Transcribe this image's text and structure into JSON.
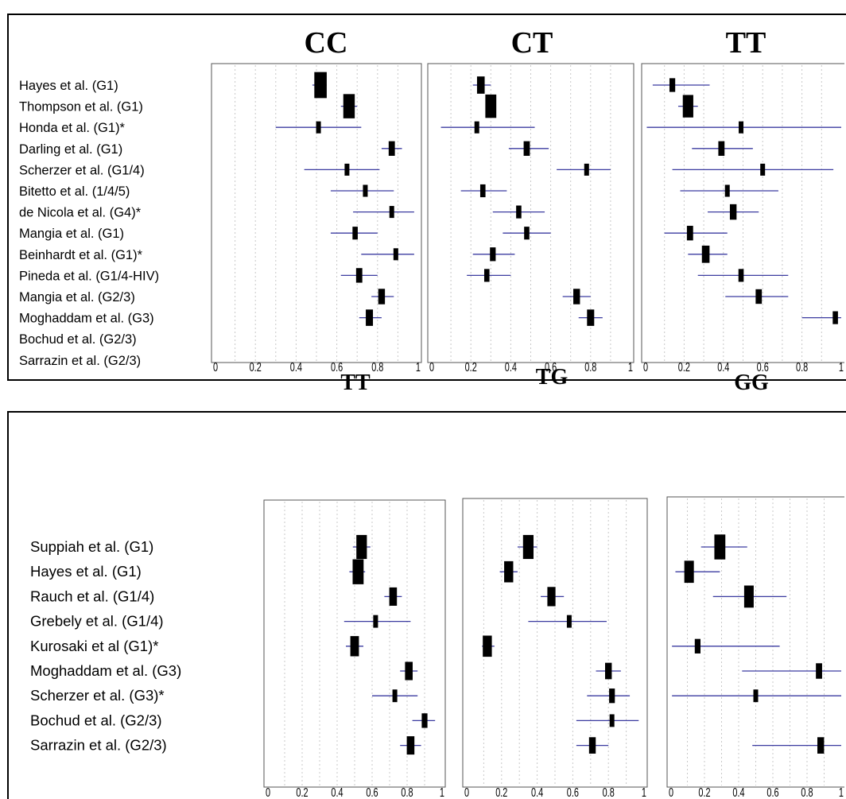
{
  "chart_data": [
    {
      "type": "forest",
      "studies": [
        "Hayes et al. (G1)",
        "Thompson et al. (G1)",
        "Honda et al. (G1)*",
        "Darling et al. (G1)",
        "Scherzer et al. (G1/4)",
        "Bitetto et al. (1/4/5)",
        "de Nicola et al. (G4)*",
        "Mangia et al. (G1)",
        "Beinhardt et al. (G1)*",
        "Pineda et al. (G1/4-HIV)",
        "Mangia et al. (G2/3)",
        "Moghaddam et al. (G3)",
        "Bochud et al.  (G2/3)",
        "Sarrazin et al. (G2/3)"
      ],
      "xlim": [
        0,
        1
      ],
      "xticks": [
        "0",
        "0.2",
        "0.4",
        "0.6",
        "0.8",
        "1"
      ],
      "panels": [
        {
          "title": "CC",
          "series": [
            {
              "est": 0.52,
              "lo": 0.48,
              "hi": 0.55,
              "weight": 2.6
            },
            {
              "est": 0.66,
              "lo": 0.62,
              "hi": 0.7,
              "weight": 2.4
            },
            {
              "est": 0.51,
              "lo": 0.3,
              "hi": 0.72,
              "weight": 1.0
            },
            {
              "est": 0.87,
              "lo": 0.82,
              "hi": 0.92,
              "weight": 1.3
            },
            {
              "est": 0.65,
              "lo": 0.44,
              "hi": 0.81,
              "weight": 1.0
            },
            {
              "est": 0.74,
              "lo": 0.57,
              "hi": 0.88,
              "weight": 1.0
            },
            {
              "est": 0.87,
              "lo": 0.68,
              "hi": 0.98,
              "weight": 1.0
            },
            {
              "est": 0.69,
              "lo": 0.57,
              "hi": 0.8,
              "weight": 1.1
            },
            {
              "est": 0.89,
              "lo": 0.72,
              "hi": 0.98,
              "weight": 1.0
            },
            {
              "est": 0.71,
              "lo": 0.62,
              "hi": 0.8,
              "weight": 1.3
            },
            {
              "est": 0.82,
              "lo": 0.77,
              "hi": 0.88,
              "weight": 1.4
            },
            {
              "est": 0.76,
              "lo": 0.71,
              "hi": 0.82,
              "weight": 1.5
            },
            null,
            null
          ]
        },
        {
          "title": "CT",
          "series": [
            {
              "est": 0.25,
              "lo": 0.21,
              "hi": 0.3,
              "weight": 1.6
            },
            {
              "est": 0.3,
              "lo": 0.28,
              "hi": 0.32,
              "weight": 2.3
            },
            {
              "est": 0.23,
              "lo": 0.05,
              "hi": 0.52,
              "weight": 1.0
            },
            {
              "est": 0.48,
              "lo": 0.39,
              "hi": 0.59,
              "weight": 1.3
            },
            {
              "est": 0.78,
              "lo": 0.63,
              "hi": 0.9,
              "weight": 1.0
            },
            {
              "est": 0.26,
              "lo": 0.15,
              "hi": 0.38,
              "weight": 1.1
            },
            {
              "est": 0.44,
              "lo": 0.31,
              "hi": 0.57,
              "weight": 1.1
            },
            {
              "est": 0.48,
              "lo": 0.36,
              "hi": 0.6,
              "weight": 1.1
            },
            {
              "est": 0.31,
              "lo": 0.21,
              "hi": 0.42,
              "weight": 1.2
            },
            {
              "est": 0.28,
              "lo": 0.18,
              "hi": 0.4,
              "weight": 1.1
            },
            {
              "est": 0.73,
              "lo": 0.66,
              "hi": 0.8,
              "weight": 1.4
            },
            {
              "est": 0.8,
              "lo": 0.74,
              "hi": 0.86,
              "weight": 1.5
            },
            null,
            null
          ]
        },
        {
          "title": "TT",
          "series": [
            {
              "est": 0.14,
              "lo": 0.04,
              "hi": 0.33,
              "weight": 1.2
            },
            {
              "est": 0.22,
              "lo": 0.17,
              "hi": 0.27,
              "weight": 2.2
            },
            {
              "est": 0.49,
              "lo": 0.01,
              "hi": 1.0,
              "weight": 1.0
            },
            {
              "est": 0.39,
              "lo": 0.24,
              "hi": 0.55,
              "weight": 1.3
            },
            {
              "est": 0.6,
              "lo": 0.14,
              "hi": 0.96,
              "weight": 1.0
            },
            {
              "est": 0.42,
              "lo": 0.18,
              "hi": 0.68,
              "weight": 1.0
            },
            {
              "est": 0.45,
              "lo": 0.32,
              "hi": 0.58,
              "weight": 1.4
            },
            {
              "est": 0.23,
              "lo": 0.1,
              "hi": 0.42,
              "weight": 1.3
            },
            {
              "est": 0.31,
              "lo": 0.22,
              "hi": 0.42,
              "weight": 1.6
            },
            {
              "est": 0.49,
              "lo": 0.27,
              "hi": 0.73,
              "weight": 1.1
            },
            {
              "est": 0.58,
              "lo": 0.41,
              "hi": 0.73,
              "weight": 1.3
            },
            {
              "est": 0.97,
              "lo": 0.8,
              "hi": 1.0,
              "weight": 1.1
            },
            null,
            null
          ]
        }
      ]
    },
    {
      "type": "forest",
      "studies": [
        "Suppiah et al. (G1)",
        "Hayes et al. (G1)",
        "Rauch et al. (G1/4)",
        "Grebely et al. (G1/4)",
        "Kurosaki et al (G1)*",
        "Moghaddam et al. (G3)",
        "Scherzer et al. (G3)*",
        "Bochud et al. (G2/3)",
        "Sarrazin et al. (G2/3)"
      ],
      "xlim": [
        0,
        1
      ],
      "xticks": [
        "0",
        "0.2",
        "0.4",
        "0.6",
        "0.8",
        "1"
      ],
      "panels": [
        {
          "title": "TT",
          "series": [
            {
              "est": 0.54,
              "lo": 0.49,
              "hi": 0.59,
              "weight": 2.2
            },
            {
              "est": 0.52,
              "lo": 0.47,
              "hi": 0.56,
              "weight": 2.3
            },
            {
              "est": 0.72,
              "lo": 0.67,
              "hi": 0.77,
              "weight": 1.6
            },
            {
              "est": 0.62,
              "lo": 0.44,
              "hi": 0.82,
              "weight": 1.0
            },
            {
              "est": 0.5,
              "lo": 0.45,
              "hi": 0.55,
              "weight": 1.8
            },
            {
              "est": 0.81,
              "lo": 0.76,
              "hi": 0.86,
              "weight": 1.6
            },
            {
              "est": 0.73,
              "lo": 0.6,
              "hi": 0.86,
              "weight": 1.0
            },
            {
              "est": 0.9,
              "lo": 0.83,
              "hi": 0.96,
              "weight": 1.2
            },
            {
              "est": 0.82,
              "lo": 0.76,
              "hi": 0.88,
              "weight": 1.6
            }
          ]
        },
        {
          "title": "TG",
          "series": [
            {
              "est": 0.35,
              "lo": 0.29,
              "hi": 0.4,
              "weight": 2.2
            },
            {
              "est": 0.24,
              "lo": 0.19,
              "hi": 0.29,
              "weight": 1.9
            },
            {
              "est": 0.48,
              "lo": 0.42,
              "hi": 0.55,
              "weight": 1.7
            },
            {
              "est": 0.58,
              "lo": 0.35,
              "hi": 0.79,
              "weight": 1.0
            },
            {
              "est": 0.12,
              "lo": 0.09,
              "hi": 0.16,
              "weight": 1.9
            },
            {
              "est": 0.8,
              "lo": 0.73,
              "hi": 0.87,
              "weight": 1.4
            },
            {
              "est": 0.82,
              "lo": 0.68,
              "hi": 0.92,
              "weight": 1.2
            },
            {
              "est": 0.82,
              "lo": 0.62,
              "hi": 0.97,
              "weight": 1.0
            },
            {
              "est": 0.71,
              "lo": 0.62,
              "hi": 0.8,
              "weight": 1.4
            }
          ]
        },
        {
          "title": "GG",
          "series": [
            {
              "est": 0.29,
              "lo": 0.18,
              "hi": 0.45,
              "weight": 2.3
            },
            {
              "est": 0.11,
              "lo": 0.03,
              "hi": 0.29,
              "weight": 2.0
            },
            {
              "est": 0.46,
              "lo": 0.25,
              "hi": 0.68,
              "weight": 2.0
            },
            null,
            {
              "est": 0.16,
              "lo": 0.01,
              "hi": 0.64,
              "weight": 1.2
            },
            {
              "est": 0.87,
              "lo": 0.42,
              "hi": 1.0,
              "weight": 1.3
            },
            {
              "est": 0.5,
              "lo": 0.01,
              "hi": 1.0,
              "weight": 1.0
            },
            null,
            {
              "est": 0.88,
              "lo": 0.48,
              "hi": 1.0,
              "weight": 1.4
            }
          ]
        }
      ]
    }
  ],
  "colors": {
    "ci_line": "#3b3ba0",
    "marker": "#000000",
    "grid": "#c8c8c8",
    "frame": "#000000",
    "panel_border": "#555555"
  }
}
